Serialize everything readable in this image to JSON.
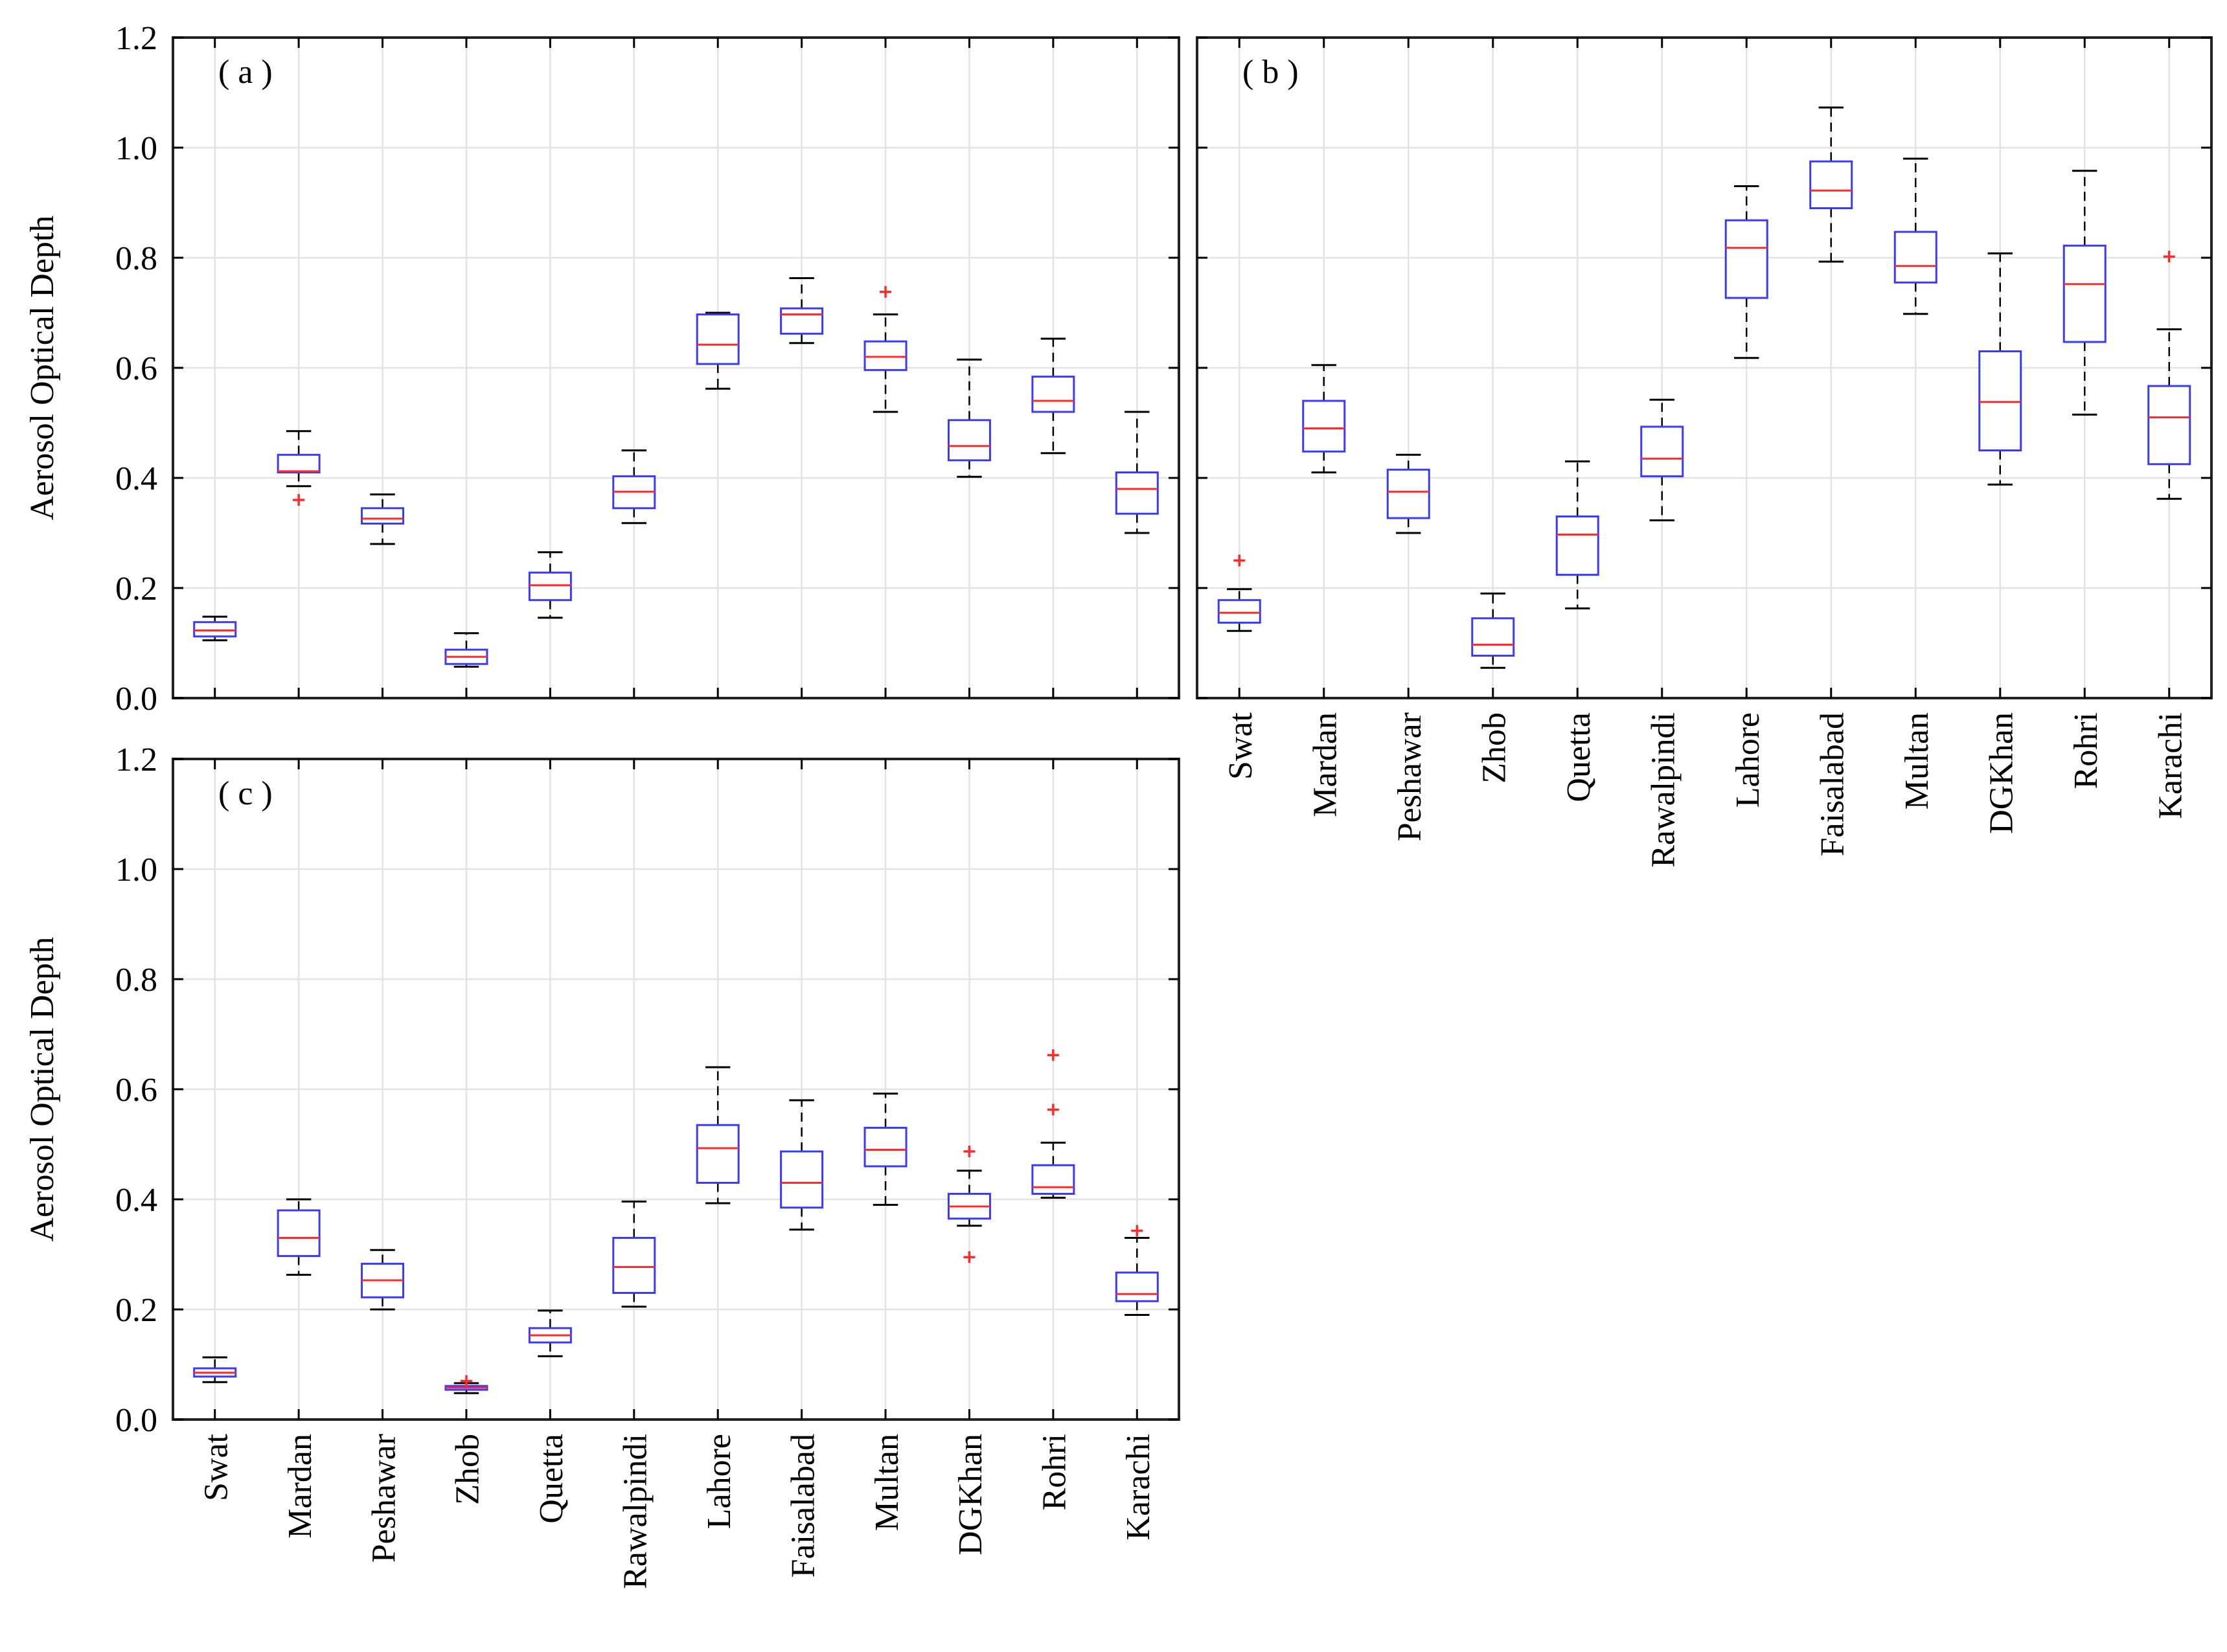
{
  "figure": {
    "ylabel": "Aerosol Optical Depth",
    "categories": [
      "Swat",
      "Mardan",
      "Peshawar",
      "Zhob",
      "Quetta",
      "Rawalpindi",
      "Lahore",
      "Faisalabad",
      "Multan",
      "DGKhan",
      "Rohri",
      "Karachi"
    ],
    "yticks": [
      "0.0",
      "0.2",
      "0.4",
      "0.6",
      "0.8",
      "1.0",
      "1.2"
    ],
    "colors": {
      "box": "#3a3aff",
      "median": "#ff2a2a",
      "whisker": "#000000",
      "outlier": "#ff2a2a",
      "grid": "#e3e3e3",
      "frame": "#222222"
    }
  },
  "chart_data": [
    {
      "type": "box",
      "panel": "( a )",
      "ylabel": "Aerosol Optical Depth",
      "ylim": [
        0,
        1.2
      ],
      "grid": true,
      "categories": [
        "Swat",
        "Mardan",
        "Peshawar",
        "Zhob",
        "Quetta",
        "Rawalpindi",
        "Lahore",
        "Faisalabad",
        "Multan",
        "DGKhan",
        "Rohri",
        "Karachi"
      ],
      "boxes": [
        {
          "whislo": 0.105,
          "q1": 0.112,
          "med": 0.123,
          "q3": 0.138,
          "whishi": 0.148,
          "outliers": []
        },
        {
          "whislo": 0.385,
          "q1": 0.41,
          "med": 0.412,
          "q3": 0.442,
          "whishi": 0.485,
          "outliers": [
            0.36
          ]
        },
        {
          "whislo": 0.28,
          "q1": 0.317,
          "med": 0.326,
          "q3": 0.345,
          "whishi": 0.37,
          "outliers": []
        },
        {
          "whislo": 0.057,
          "q1": 0.062,
          "med": 0.075,
          "q3": 0.088,
          "whishi": 0.118,
          "outliers": []
        },
        {
          "whislo": 0.146,
          "q1": 0.178,
          "med": 0.205,
          "q3": 0.228,
          "whishi": 0.265,
          "outliers": []
        },
        {
          "whislo": 0.318,
          "q1": 0.345,
          "med": 0.375,
          "q3": 0.403,
          "whishi": 0.45,
          "outliers": []
        },
        {
          "whislo": 0.562,
          "q1": 0.607,
          "med": 0.642,
          "q3": 0.697,
          "whishi": 0.7,
          "outliers": []
        },
        {
          "whislo": 0.645,
          "q1": 0.662,
          "med": 0.697,
          "q3": 0.708,
          "whishi": 0.763,
          "outliers": []
        },
        {
          "whislo": 0.52,
          "q1": 0.596,
          "med": 0.62,
          "q3": 0.648,
          "whishi": 0.697,
          "outliers": [
            0.738
          ]
        },
        {
          "whislo": 0.402,
          "q1": 0.432,
          "med": 0.458,
          "q3": 0.505,
          "whishi": 0.615,
          "outliers": []
        },
        {
          "whislo": 0.445,
          "q1": 0.52,
          "med": 0.54,
          "q3": 0.584,
          "whishi": 0.653,
          "outliers": []
        },
        {
          "whislo": 0.3,
          "q1": 0.335,
          "med": 0.38,
          "q3": 0.41,
          "whishi": 0.52,
          "outliers": []
        }
      ]
    },
    {
      "type": "box",
      "panel": "( b )",
      "ylabel": "",
      "ylim": [
        0,
        1.2
      ],
      "grid": true,
      "categories": [
        "Swat",
        "Mardan",
        "Peshawar",
        "Zhob",
        "Quetta",
        "Rawalpindi",
        "Lahore",
        "Faisalabad",
        "Multan",
        "DGKhan",
        "Rohri",
        "Karachi"
      ],
      "boxes": [
        {
          "whislo": 0.122,
          "q1": 0.137,
          "med": 0.155,
          "q3": 0.178,
          "whishi": 0.198,
          "outliers": [
            0.25
          ]
        },
        {
          "whislo": 0.41,
          "q1": 0.448,
          "med": 0.49,
          "q3": 0.54,
          "whishi": 0.605,
          "outliers": []
        },
        {
          "whislo": 0.3,
          "q1": 0.327,
          "med": 0.375,
          "q3": 0.415,
          "whishi": 0.442,
          "outliers": []
        },
        {
          "whislo": 0.055,
          "q1": 0.077,
          "med": 0.097,
          "q3": 0.145,
          "whishi": 0.19,
          "outliers": []
        },
        {
          "whislo": 0.163,
          "q1": 0.224,
          "med": 0.297,
          "q3": 0.33,
          "whishi": 0.43,
          "outliers": []
        },
        {
          "whislo": 0.323,
          "q1": 0.403,
          "med": 0.435,
          "q3": 0.493,
          "whishi": 0.542,
          "outliers": []
        },
        {
          "whislo": 0.618,
          "q1": 0.727,
          "med": 0.818,
          "q3": 0.868,
          "whishi": 0.93,
          "outliers": []
        },
        {
          "whislo": 0.793,
          "q1": 0.89,
          "med": 0.922,
          "q3": 0.975,
          "whishi": 1.073,
          "outliers": []
        },
        {
          "whislo": 0.698,
          "q1": 0.755,
          "med": 0.785,
          "q3": 0.847,
          "whishi": 0.98,
          "outliers": []
        },
        {
          "whislo": 0.388,
          "q1": 0.45,
          "med": 0.538,
          "q3": 0.63,
          "whishi": 0.808,
          "outliers": []
        },
        {
          "whislo": 0.515,
          "q1": 0.647,
          "med": 0.752,
          "q3": 0.822,
          "whishi": 0.958,
          "outliers": []
        },
        {
          "whislo": 0.362,
          "q1": 0.425,
          "med": 0.51,
          "q3": 0.567,
          "whishi": 0.67,
          "outliers": [
            0.802
          ]
        }
      ]
    },
    {
      "type": "box",
      "panel": "( c )",
      "ylabel": "Aerosol Optical Depth",
      "ylim": [
        0,
        1.2
      ],
      "grid": true,
      "categories": [
        "Swat",
        "Mardan",
        "Peshawar",
        "Zhob",
        "Quetta",
        "Rawalpindi",
        "Lahore",
        "Faisalabad",
        "Multan",
        "DGKhan",
        "Rohri",
        "Karachi"
      ],
      "boxes": [
        {
          "whislo": 0.068,
          "q1": 0.078,
          "med": 0.085,
          "q3": 0.093,
          "whishi": 0.113,
          "outliers": []
        },
        {
          "whislo": 0.263,
          "q1": 0.297,
          "med": 0.33,
          "q3": 0.38,
          "whishi": 0.4,
          "outliers": []
        },
        {
          "whislo": 0.2,
          "q1": 0.222,
          "med": 0.253,
          "q3": 0.283,
          "whishi": 0.308,
          "outliers": []
        },
        {
          "whislo": 0.048,
          "q1": 0.054,
          "med": 0.058,
          "q3": 0.061,
          "whishi": 0.066,
          "outliers": [
            0.07
          ]
        },
        {
          "whislo": 0.115,
          "q1": 0.14,
          "med": 0.153,
          "q3": 0.166,
          "whishi": 0.198,
          "outliers": []
        },
        {
          "whislo": 0.205,
          "q1": 0.23,
          "med": 0.277,
          "q3": 0.33,
          "whishi": 0.396,
          "outliers": []
        },
        {
          "whislo": 0.393,
          "q1": 0.43,
          "med": 0.493,
          "q3": 0.535,
          "whishi": 0.64,
          "outliers": []
        },
        {
          "whislo": 0.345,
          "q1": 0.385,
          "med": 0.43,
          "q3": 0.487,
          "whishi": 0.58,
          "outliers": []
        },
        {
          "whislo": 0.39,
          "q1": 0.46,
          "med": 0.49,
          "q3": 0.53,
          "whishi": 0.592,
          "outliers": []
        },
        {
          "whislo": 0.352,
          "q1": 0.365,
          "med": 0.387,
          "q3": 0.41,
          "whishi": 0.452,
          "outliers": [
            0.487,
            0.295
          ]
        },
        {
          "whislo": 0.403,
          "q1": 0.41,
          "med": 0.422,
          "q3": 0.462,
          "whishi": 0.503,
          "outliers": [
            0.563,
            0.662
          ]
        },
        {
          "whislo": 0.19,
          "q1": 0.215,
          "med": 0.228,
          "q3": 0.267,
          "whishi": 0.33,
          "outliers": [
            0.343
          ]
        }
      ]
    }
  ]
}
